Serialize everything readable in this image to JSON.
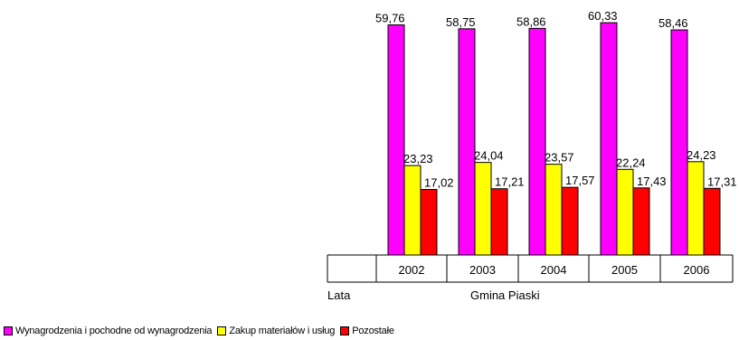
{
  "chart_data": {
    "type": "bar",
    "categories": [
      "2002",
      "2003",
      "2004",
      "2005",
      "2006"
    ],
    "series": [
      {
        "name": "Wynagrodzenia i pochodne od wynagrodzenia",
        "color": "#ff00ff",
        "values": [
          59.76,
          58.75,
          58.86,
          60.33,
          58.46
        ],
        "labels": [
          "59,76",
          "58,75",
          "58,86",
          "60,33",
          "58,46"
        ]
      },
      {
        "name": "Zakup materiałów i usług",
        "color": "#ffff00",
        "values": [
          23.23,
          24.04,
          23.57,
          22.24,
          24.23
        ],
        "labels": [
          "23,23",
          "24,04",
          "23,57",
          "22,24",
          "24,23"
        ]
      },
      {
        "name": "Pozostałe",
        "color": "#ff0000",
        "values": [
          17.02,
          17.21,
          17.57,
          17.43,
          17.31
        ],
        "labels": [
          "17,02",
          "17,21",
          "17,57",
          "17,43",
          "17,31"
        ]
      }
    ],
    "row_label_left": "Lata",
    "row_label_right": "Gmina Piaski",
    "ylim": [
      0,
      62
    ],
    "legend_position": "bottom-left",
    "grid": false
  }
}
